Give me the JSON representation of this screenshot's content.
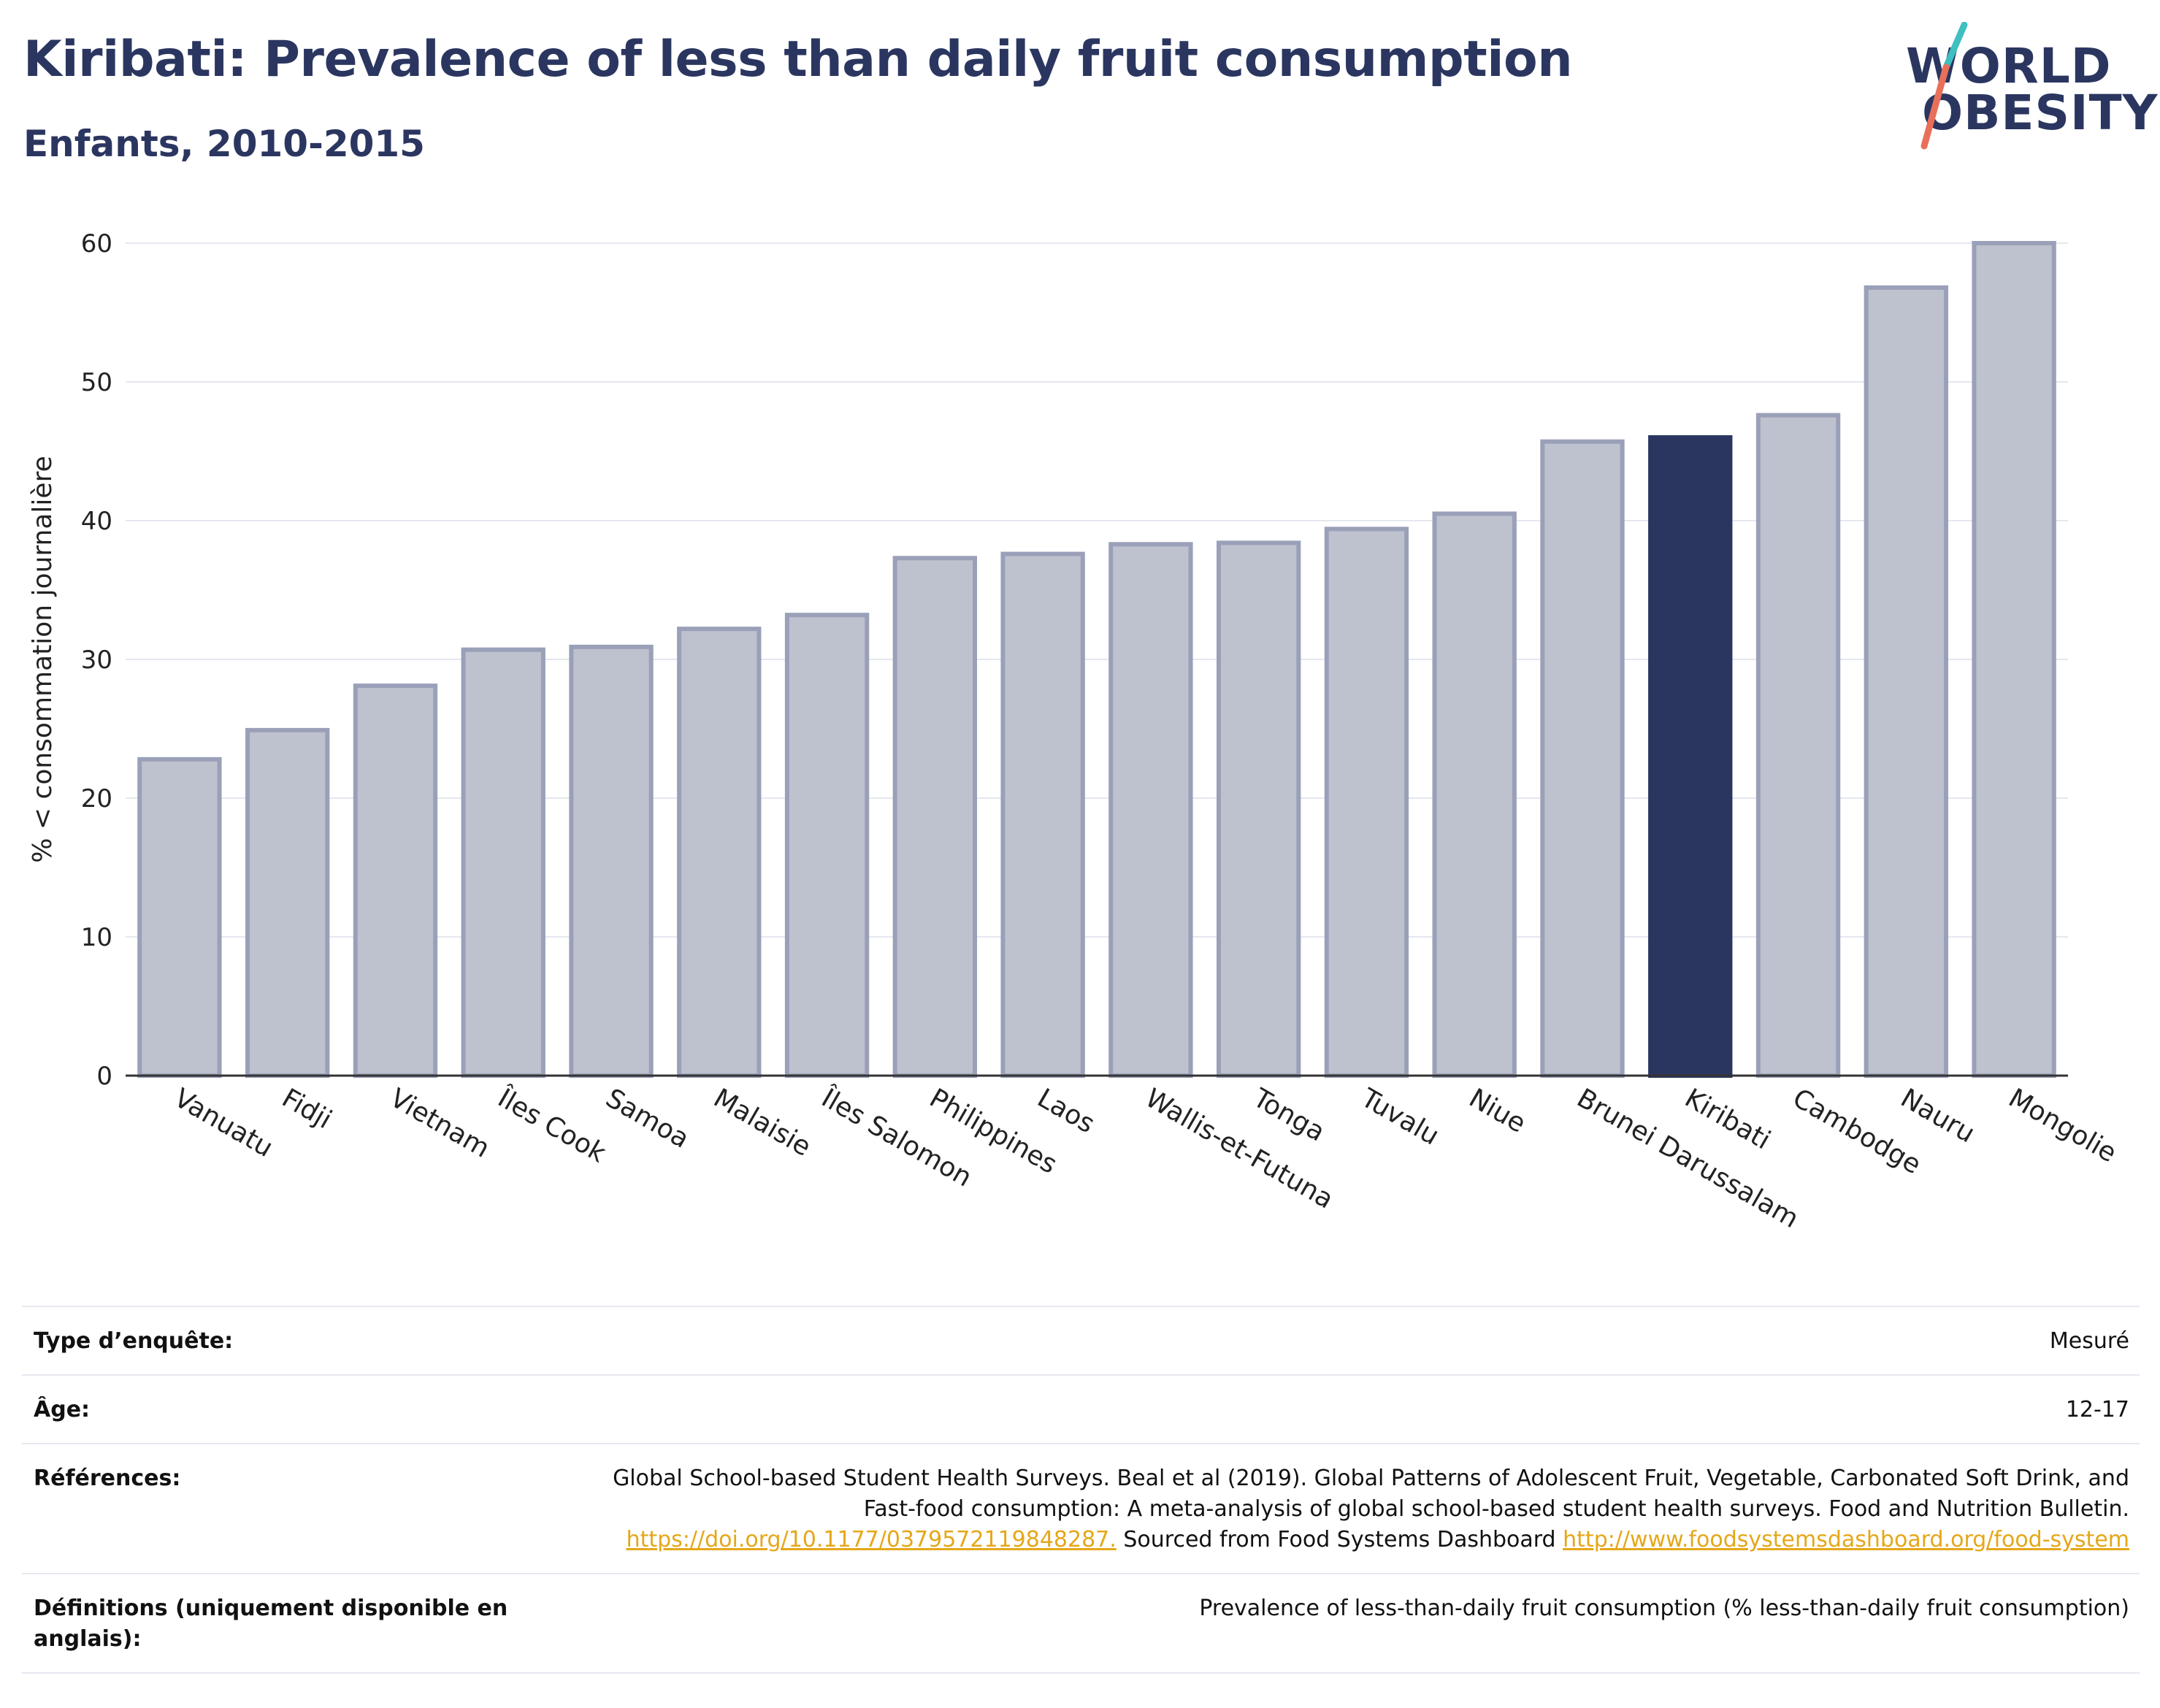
{
  "header": {
    "title": "Kiribati: Prevalence of less than daily fruit consumption",
    "subtitle": "Enfants, 2010-2015"
  },
  "logo": {
    "line1": "WORLD",
    "line2": "OBESITY",
    "colors": {
      "text": "#2b3660",
      "slash_top": "#3fbfbf",
      "slash_bottom": "#e8705a"
    }
  },
  "chart_data": {
    "type": "bar",
    "title": "",
    "ylabel": "% < consommation journalière",
    "xlabel": "",
    "ylim": [
      0,
      60
    ],
    "yticks": [
      0,
      10,
      20,
      30,
      40,
      50,
      60
    ],
    "grid": true,
    "categories": [
      "Vanuatu",
      "Fidji",
      "Vietnam",
      "Îles Cook",
      "Samoa",
      "Malaisie",
      "Îles Salomon",
      "Philippines",
      "Laos",
      "Wallis-et-Futuna",
      "Tonga",
      "Tuvalu",
      "Niue",
      "Brunei Darussalam",
      "Kiribati",
      "Cambodge",
      "Nauru",
      "Mongolie"
    ],
    "values": [
      22.8,
      24.9,
      28.1,
      30.7,
      30.9,
      32.2,
      33.2,
      37.3,
      37.6,
      38.3,
      38.4,
      39.4,
      40.5,
      45.7,
      46.0,
      47.6,
      56.8,
      60.0
    ],
    "highlight": "Kiribati",
    "colors": {
      "bar": "#bec1ce",
      "bar_border": "#9aa0b8",
      "highlight": "#2b3660",
      "grid": "#e5e7ef",
      "axis": "#333333"
    }
  },
  "info_table": [
    {
      "label": "Type d’enquête:",
      "value": "Mesuré"
    },
    {
      "label": "Âge:",
      "value": "12-17"
    },
    {
      "label": "Références:",
      "text1": "Global School-based Student Health Surveys. Beal et al (2019). Global Patterns of Adolescent Fruit, Vegetable, Carbonated Soft Drink, and Fast-food consumption: A meta-analysis of global school-based student health surveys. Food and Nutrition Bulletin.",
      "link1": "https://doi.org/10.1177/0379572119848287.",
      "text2": "Sourced from Food Systems Dashboard",
      "link2": "http://www.foodsystemsdashboard.org/food-system"
    },
    {
      "label": "Définitions (uniquement disponible en anglais):",
      "value": "Prevalence of less-than-daily fruit consumption (% less-than-daily fruit consumption)"
    }
  ]
}
